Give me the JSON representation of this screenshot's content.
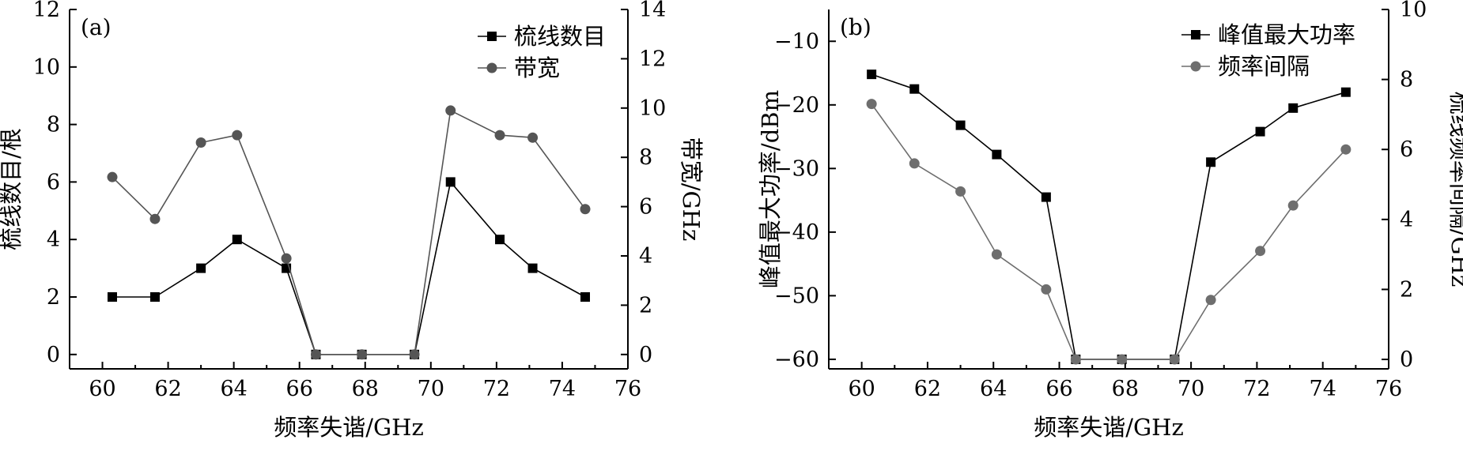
{
  "chart_data": [
    {
      "type": "line",
      "panel_label": "(a)",
      "xlabel": "频率失谐/GHz",
      "ylabel": "梳线数目/根",
      "y2label": "带宽/GHz",
      "xlim": [
        59,
        76
      ],
      "ylim": [
        -0.5,
        12
      ],
      "y2lim": [
        -0.5834,
        14
      ],
      "xticks": [
        60,
        62,
        64,
        66,
        68,
        70,
        72,
        74,
        76
      ],
      "yticks": [
        0,
        2,
        4,
        6,
        8,
        10,
        12
      ],
      "y2ticks": [
        0,
        2,
        4,
        6,
        8,
        10,
        12,
        14
      ],
      "legend_position": "top-right",
      "series": [
        {
          "name": "梳线数目",
          "axis": "left",
          "marker": "square",
          "color": "#000000",
          "x": [
            60.3,
            61.6,
            63.0,
            64.1,
            65.6,
            66.5,
            67.9,
            69.5,
            70.6,
            72.1,
            73.1,
            74.7
          ],
          "values": [
            2,
            2,
            3,
            4,
            3,
            0,
            0,
            0,
            6,
            4,
            3,
            2
          ]
        },
        {
          "name": "带宽",
          "axis": "right",
          "marker": "circle",
          "color": "#555555",
          "x": [
            60.3,
            61.6,
            63.0,
            64.1,
            65.6,
            66.5,
            67.9,
            69.5,
            70.6,
            72.1,
            73.1,
            74.7
          ],
          "values": [
            7.2,
            5.5,
            8.6,
            8.9,
            3.9,
            0,
            0,
            0,
            9.9,
            8.9,
            8.8,
            5.9
          ]
        }
      ]
    },
    {
      "type": "line",
      "panel_label": "(b)",
      "xlabel": "频率失谐/GHz",
      "ylabel": "峰值最大功率/dBm",
      "y2label": "梳线频率间隔/GHz",
      "xlim": [
        59,
        76
      ],
      "ylim": [
        -61.5,
        -5
      ],
      "y2lim": [
        -0.27,
        10
      ],
      "xticks": [
        60,
        62,
        64,
        66,
        68,
        70,
        72,
        74,
        76
      ],
      "yticks": [
        -60,
        -50,
        -40,
        -30,
        -20,
        -10
      ],
      "y2ticks": [
        0,
        2,
        4,
        6,
        8,
        10
      ],
      "legend_position": "top-right",
      "series": [
        {
          "name": "峰值最大功率",
          "axis": "left",
          "marker": "square",
          "color": "#000000",
          "x": [
            60.3,
            61.6,
            63.0,
            64.1,
            65.6,
            66.5,
            67.9,
            69.5,
            70.6,
            72.1,
            73.1,
            74.7
          ],
          "values": [
            -15.2,
            -17.5,
            -23.2,
            -27.8,
            -34.5,
            -60,
            -60,
            -60,
            -29,
            -24.2,
            -20.5,
            -18
          ]
        },
        {
          "name": "频率间隔",
          "axis": "right",
          "marker": "circle",
          "color": "#6e6e6e",
          "x": [
            60.3,
            61.6,
            63.0,
            64.1,
            65.6,
            66.5,
            67.9,
            69.5,
            70.6,
            72.1,
            73.1,
            74.7
          ],
          "values": [
            7.3,
            5.6,
            4.8,
            3.0,
            2.0,
            0,
            0,
            0,
            1.7,
            3.1,
            4.4,
            6.0
          ]
        }
      ]
    }
  ]
}
